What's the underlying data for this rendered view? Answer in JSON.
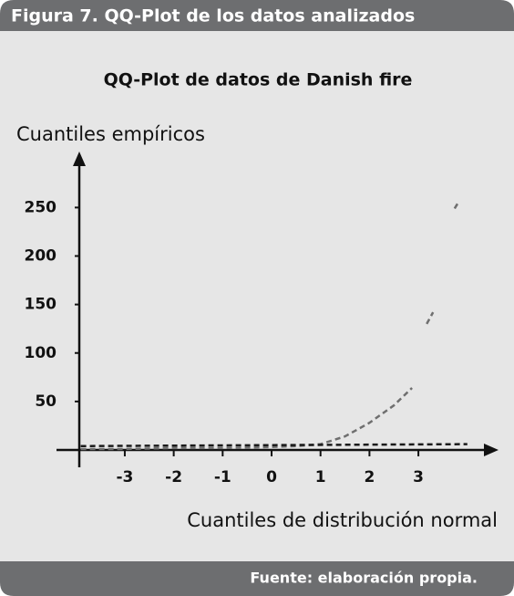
{
  "header": {
    "title": "Figura 7. QQ-Plot de los datos analizados"
  },
  "chart_data": {
    "type": "line",
    "title": "QQ-Plot de datos de Danish fire",
    "y_label": "Cuantiles empíricos",
    "x_label": "Cuantiles de distribución normal",
    "xlim": [
      -3.93,
      4.6
    ],
    "ylim": [
      -16,
      304
    ],
    "xticks": [
      -3,
      -2,
      -1,
      0,
      1,
      2,
      3
    ],
    "yticks": [
      50,
      100,
      150,
      200,
      250
    ],
    "grid": false,
    "series": [
      {
        "color": "#6f6f6f",
        "x": [
          -3.9,
          -3,
          -2,
          -1,
          0,
          0.5,
          1,
          1.5,
          2,
          2.5,
          2.87,
          3.0,
          3.17,
          3.3,
          3.6,
          3.74,
          3.8
        ],
        "values": [
          1,
          1,
          2,
          2,
          3,
          4,
          6,
          14,
          28,
          46,
          64,
          null,
          130,
          142,
          null,
          249,
          254
        ]
      },
      {
        "color": "#1a1a1a",
        "x": [
          -3.9,
          4
        ],
        "values": [
          4,
          6
        ]
      }
    ]
  },
  "footer": {
    "source": "Fuente: elaboración propia."
  }
}
